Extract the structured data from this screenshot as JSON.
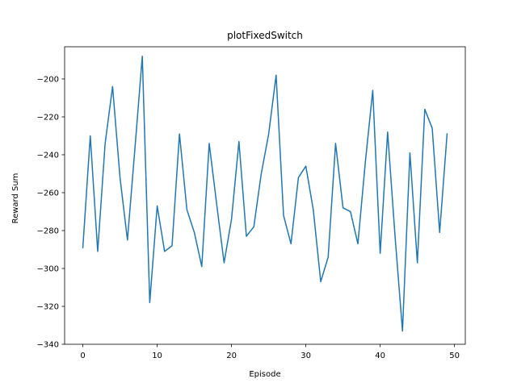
{
  "chart_data": {
    "type": "line",
    "title": "plotFixedSwitch",
    "xlabel": "Episode",
    "ylabel": "Reward Sum",
    "xlim": [
      -2.45,
      51.45
    ],
    "ylim": [
      -340,
      -183
    ],
    "x_ticks": [
      0,
      10,
      20,
      30,
      40,
      50
    ],
    "y_ticks": [
      -340,
      -320,
      -300,
      -280,
      -260,
      -240,
      -220,
      -200
    ],
    "x_tick_labels": [
      "0",
      "10",
      "20",
      "30",
      "40",
      "50"
    ],
    "y_tick_labels": [
      "−340",
      "−320",
      "−300",
      "−280",
      "−260",
      "−240",
      "−220",
      "−200"
    ],
    "grid": false,
    "series": [
      {
        "color": "#1f77b4",
        "x": [
          0,
          1,
          2,
          3,
          4,
          5,
          6,
          7,
          8,
          9,
          10,
          11,
          12,
          13,
          14,
          15,
          16,
          17,
          18,
          19,
          20,
          21,
          22,
          23,
          24,
          25,
          26,
          27,
          28,
          29,
          30,
          31,
          32,
          33,
          34,
          35,
          36,
          37,
          38,
          39,
          40,
          41,
          42,
          43,
          44,
          45,
          46,
          47,
          48,
          49
        ],
        "y": [
          -289,
          -230,
          -291,
          -234,
          -204,
          -252,
          -285,
          -237,
          -188,
          -318,
          -267,
          -291,
          -288,
          -229,
          -269,
          -281,
          -299,
          -234,
          -266,
          -297,
          -274,
          -233,
          -283,
          -278,
          -250,
          -229,
          -198,
          -272,
          -287,
          -252,
          -246,
          -269,
          -307,
          -294,
          -234,
          -268,
          -270,
          -287,
          -244,
          -206,
          -292,
          -228,
          -283,
          -333,
          -239,
          -297,
          -216,
          -226,
          -281,
          -229
        ]
      }
    ]
  }
}
